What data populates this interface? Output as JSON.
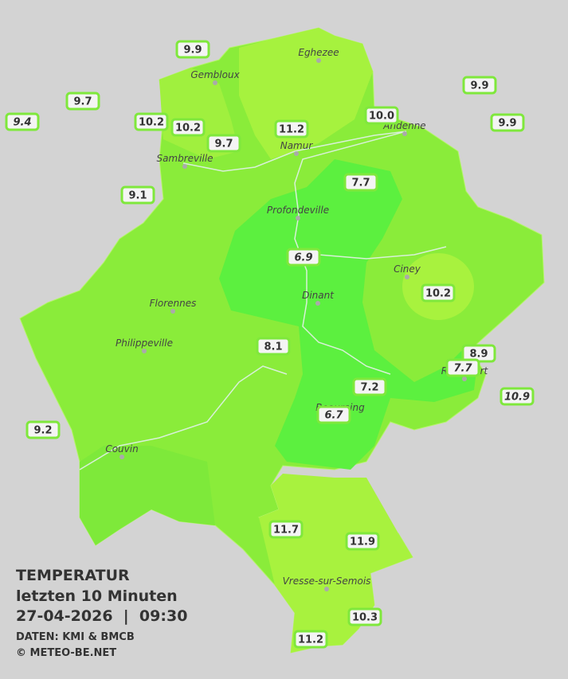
{
  "title": "TEMPERATUR",
  "subtitle": "letzten 10 Minuten",
  "timestamp": "27-04-2026  |  09:30",
  "source": "DATEN: KMI & BMCB",
  "copyright": "© METEO-BE.NET",
  "cities": [
    "Eghezee",
    "Gembloux",
    "Andenne",
    "Namur",
    "Sambreville",
    "Profondeville",
    "Ciney",
    "Dinant",
    "Florennes",
    "Philippeville",
    "Beauraing",
    "Rochefort",
    "Couvin",
    "Vresse-sur-Semois"
  ],
  "stations": [
    {
      "value": "9.9",
      "italic": false
    },
    {
      "value": "9.7",
      "italic": false
    },
    {
      "value": "9.4",
      "italic": true
    },
    {
      "value": "10.2",
      "italic": false
    },
    {
      "value": "10.2",
      "italic": false
    },
    {
      "value": "9.7",
      "italic": false
    },
    {
      "value": "11.2",
      "italic": false
    },
    {
      "value": "10.0",
      "italic": false
    },
    {
      "value": "9.9",
      "italic": false
    },
    {
      "value": "9.9",
      "italic": false
    },
    {
      "value": "9.1",
      "italic": false
    },
    {
      "value": "7.7",
      "italic": false
    },
    {
      "value": "6.9",
      "italic": true
    },
    {
      "value": "10.2",
      "italic": false
    },
    {
      "value": "8.1",
      "italic": false
    },
    {
      "value": "8.9",
      "italic": false
    },
    {
      "value": "7.7",
      "italic": true
    },
    {
      "value": "7.2",
      "italic": false
    },
    {
      "value": "10.9",
      "italic": true
    },
    {
      "value": "6.7",
      "italic": true
    },
    {
      "value": "9.2",
      "italic": false
    },
    {
      "value": "11.7",
      "italic": false
    },
    {
      "value": "11.9",
      "italic": false
    },
    {
      "value": "10.3",
      "italic": false
    },
    {
      "value": "11.2",
      "italic": false
    }
  ]
}
